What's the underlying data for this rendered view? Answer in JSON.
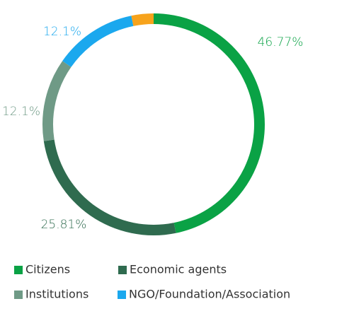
{
  "chart_data": {
    "type": "donut",
    "categories": [
      "Citizens",
      "Economic agents",
      "Institutions",
      "NGO/Foundation/Association",
      null
    ],
    "values": [
      46.77,
      25.81,
      12.1,
      12.1,
      3.22
    ],
    "value_labels": [
      "46.77%",
      "25.81%",
      "12.1%",
      "12.1%",
      null
    ],
    "colors": [
      "#0aa245",
      "#2f6b4f",
      "#6f9a86",
      "#1ba8ee",
      "#f7a31c"
    ],
    "legend": "bottom"
  }
}
